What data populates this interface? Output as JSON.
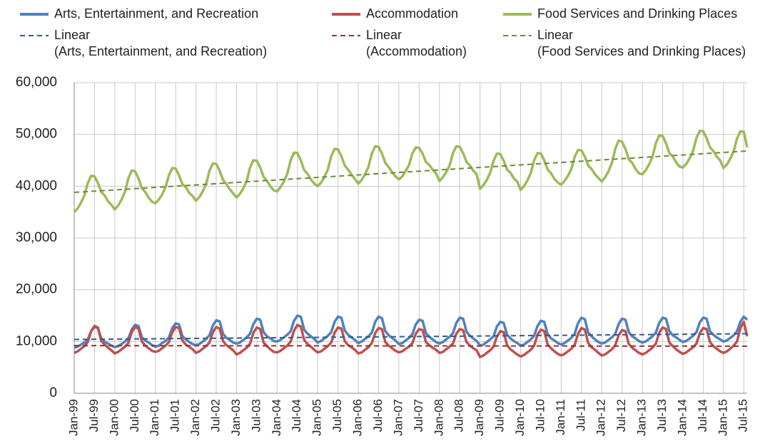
{
  "chart_data": {
    "type": "line",
    "categories": [
      "Jan-99",
      null,
      null,
      null,
      null,
      null,
      "Jul-99",
      null,
      null,
      null,
      null,
      null,
      "Jan-00",
      null,
      null,
      null,
      null,
      null,
      "Jul-00",
      null,
      null,
      null,
      null,
      null,
      "Jan-01",
      null,
      null,
      null,
      null,
      null,
      "Jul-01",
      null,
      null,
      null,
      null,
      null,
      "Jan-02",
      null,
      null,
      null,
      null,
      null,
      "Jul-02",
      null,
      null,
      null,
      null,
      null,
      "Jan-03",
      null,
      null,
      null,
      null,
      null,
      "Jul-03",
      null,
      null,
      null,
      null,
      null,
      "Jan-04",
      null,
      null,
      null,
      null,
      null,
      "Jul-04",
      null,
      null,
      null,
      null,
      null,
      "Jan-05",
      null,
      null,
      null,
      null,
      null,
      "Jul-05",
      null,
      null,
      null,
      null,
      null,
      "Jan-06",
      null,
      null,
      null,
      null,
      null,
      "Jul-06",
      null,
      null,
      null,
      null,
      null,
      "Jan-07",
      null,
      null,
      null,
      null,
      null,
      "Jul-07",
      null,
      null,
      null,
      null,
      null,
      "Jan-08",
      null,
      null,
      null,
      null,
      null,
      "Jul-08",
      null,
      null,
      null,
      null,
      null,
      "Jan-09",
      null,
      null,
      null,
      null,
      null,
      "Jul-09",
      null,
      null,
      null,
      null,
      null,
      "Jan-10",
      null,
      null,
      null,
      null,
      null,
      "Jul-10",
      null,
      null,
      null,
      null,
      null,
      "Jan-11",
      null,
      null,
      null,
      null,
      null,
      "Jul-11",
      null,
      null,
      null,
      null,
      null,
      "Jan-12",
      null,
      null,
      null,
      null,
      null,
      "Jul-12",
      null,
      null,
      null,
      null,
      null,
      "Jan-13",
      null,
      null,
      null,
      null,
      null,
      "Jul-13",
      null,
      null,
      null,
      null,
      null,
      "Jan-14",
      null,
      null,
      null,
      null,
      null,
      "Jul-14",
      null,
      null,
      null,
      null,
      null,
      "Jan-15",
      null,
      null,
      null,
      null,
      null,
      "Jul-15",
      null
    ],
    "series": [
      {
        "name": "Arts, Entertainment, and Recreation",
        "color": "#4f81bd",
        "values": [
          8800,
          9000,
          9400,
          9800,
          10400,
          12000,
          12800,
          12600,
          10600,
          10000,
          9600,
          9200,
          8900,
          9100,
          9500,
          10000,
          10600,
          12300,
          13200,
          13000,
          10800,
          10200,
          9800,
          9300,
          9000,
          9200,
          9700,
          10100,
          10800,
          12600,
          13500,
          13300,
          11000,
          10400,
          9900,
          9500,
          9300,
          9500,
          10000,
          10500,
          11200,
          13100,
          14100,
          13900,
          11500,
          10700,
          10300,
          9800,
          9600,
          9800,
          10300,
          10800,
          11500,
          13400,
          14400,
          14200,
          11800,
          11000,
          10600,
          10100,
          10000,
          10300,
          10800,
          11300,
          12000,
          14000,
          15000,
          14800,
          12300,
          11500,
          11000,
          10500,
          9800,
          10100,
          10600,
          11100,
          11800,
          13800,
          14800,
          14600,
          12100,
          11300,
          10800,
          10300,
          9700,
          10000,
          10500,
          11000,
          11700,
          13800,
          14800,
          14500,
          12000,
          11200,
          10700,
          10200,
          9500,
          9700,
          10200,
          10700,
          11400,
          13300,
          14200,
          14000,
          11600,
          10900,
          10400,
          9900,
          9600,
          9900,
          10400,
          10900,
          11600,
          13600,
          14600,
          14400,
          11900,
          11100,
          10600,
          10100,
          9200,
          9400,
          9900,
          10400,
          11000,
          12900,
          13800,
          13600,
          11300,
          10600,
          10100,
          9700,
          9200,
          9400,
          9900,
          10400,
          11100,
          13000,
          14000,
          13800,
          11400,
          10600,
          10200,
          9700,
          9400,
          9700,
          10200,
          10700,
          11500,
          13600,
          14600,
          14300,
          11700,
          11000,
          10400,
          9900,
          9600,
          9800,
          10300,
          10800,
          11500,
          13400,
          14400,
          14200,
          11800,
          11000,
          10600,
          10100,
          9800,
          10000,
          10500,
          11000,
          11700,
          13600,
          14600,
          14400,
          12000,
          11200,
          10800,
          10300,
          9900,
          10100,
          10600,
          11100,
          11800,
          13700,
          14600,
          14400,
          12000,
          11300,
          10800,
          10400,
          10000,
          10200,
          10700,
          11200,
          12000,
          13800,
          14800,
          14200
        ]
      },
      {
        "name": "Accommodation",
        "color": "#c0504d",
        "values": [
          7800,
          8100,
          8600,
          9100,
          9900,
          12000,
          13000,
          12700,
          10100,
          9400,
          8800,
          8300,
          7700,
          8000,
          8500,
          9000,
          9700,
          11800,
          12800,
          12500,
          10000,
          9200,
          8700,
          8200,
          8000,
          8200,
          8700,
          9200,
          9900,
          11800,
          12800,
          12600,
          10200,
          9400,
          9000,
          8500,
          7800,
          8100,
          8600,
          9100,
          9800,
          11800,
          12800,
          12500,
          10100,
          9300,
          8800,
          8300,
          7500,
          7800,
          8300,
          8800,
          9600,
          11700,
          12700,
          12400,
          9800,
          9100,
          8500,
          8000,
          7900,
          8200,
          8700,
          9200,
          10000,
          12100,
          13200,
          12900,
          10300,
          9500,
          9000,
          8400,
          7900,
          8100,
          8600,
          9100,
          9800,
          11700,
          12700,
          12500,
          10100,
          9300,
          8900,
          8400,
          7700,
          7900,
          8400,
          8900,
          9700,
          11600,
          12600,
          12400,
          9900,
          9200,
          8700,
          8200,
          7900,
          8100,
          8600,
          9000,
          9700,
          11500,
          12400,
          12200,
          9900,
          9300,
          8800,
          8400,
          7800,
          8000,
          8500,
          9000,
          9600,
          11500,
          12400,
          12200,
          9900,
          9200,
          8700,
          8300,
          7000,
          7300,
          7800,
          8300,
          9000,
          11000,
          12000,
          11800,
          9300,
          8500,
          8000,
          7500,
          7100,
          7400,
          7900,
          8400,
          9200,
          11300,
          12300,
          12000,
          9400,
          8700,
          8100,
          7600,
          7300,
          7600,
          8100,
          8600,
          9400,
          11500,
          12600,
          12300,
          9700,
          8900,
          8400,
          7800,
          7300,
          7500,
          8000,
          8500,
          9300,
          11200,
          12200,
          12000,
          9500,
          8800,
          8300,
          7800,
          7500,
          7800,
          8300,
          8800,
          9600,
          11700,
          12700,
          12400,
          9800,
          9100,
          8500,
          8000,
          7600,
          7900,
          8400,
          8900,
          9600,
          11600,
          12600,
          12400,
          9900,
          9100,
          8600,
          8100,
          7800,
          8100,
          8600,
          9200,
          10000,
          12600,
          13800,
          11000
        ]
      },
      {
        "name": "Food Services and Drinking Places",
        "color": "#9bbb59",
        "values": [
          35000,
          35700,
          36800,
          38200,
          40600,
          42000,
          41900,
          40600,
          38900,
          38200,
          37100,
          36400,
          35500,
          36300,
          37400,
          38900,
          41500,
          43000,
          42900,
          41500,
          39600,
          38900,
          37800,
          37000,
          36700,
          37400,
          38400,
          39800,
          42100,
          43500,
          43400,
          42100,
          40400,
          39800,
          38700,
          38100,
          37200,
          37900,
          39000,
          40400,
          43000,
          44400,
          44300,
          43000,
          41200,
          40400,
          39400,
          38600,
          37800,
          38500,
          39600,
          41000,
          43600,
          45000,
          44900,
          43600,
          41800,
          41000,
          40000,
          39200,
          39000,
          39800,
          40900,
          42400,
          45000,
          46500,
          46400,
          45000,
          43100,
          42400,
          41300,
          40500,
          40000,
          40700,
          41800,
          43200,
          45800,
          47200,
          47100,
          45800,
          44000,
          43200,
          42200,
          41400,
          40500,
          41200,
          42300,
          43700,
          46300,
          47700,
          47600,
          46300,
          44500,
          43700,
          42700,
          41900,
          41300,
          41900,
          42900,
          44100,
          46300,
          47500,
          47400,
          46300,
          44700,
          44100,
          43200,
          42500,
          41000,
          41700,
          42700,
          44000,
          46400,
          47700,
          47600,
          46400,
          44700,
          44000,
          43000,
          42300,
          39500,
          40200,
          41200,
          42600,
          44900,
          46300,
          46200,
          44900,
          43200,
          42600,
          41500,
          40900,
          39300,
          40000,
          41100,
          42500,
          45000,
          46400,
          46300,
          45000,
          43200,
          42500,
          41400,
          40700,
          40300,
          41000,
          42000,
          43300,
          45700,
          47000,
          46900,
          45700,
          44000,
          43300,
          42300,
          41600,
          40900,
          41700,
          42900,
          44500,
          47200,
          48800,
          48600,
          47200,
          45200,
          44500,
          43300,
          42500,
          42300,
          43100,
          44200,
          45700,
          48300,
          49800,
          49700,
          48300,
          46400,
          45700,
          44600,
          43800,
          43600,
          44300,
          45400,
          46800,
          49300,
          50700,
          50600,
          49300,
          47500,
          46800,
          45700,
          45000,
          43500,
          44200,
          45300,
          46700,
          49200,
          50600,
          50500,
          47500
        ]
      }
    ],
    "trendlines": [
      {
        "label_lines": [
          "Linear",
          "(Arts, Entertainment, and Recreation)"
        ],
        "color": "#2f5d8f",
        "start": 10400,
        "end": 11500
      },
      {
        "label_lines": [
          "Linear",
          "(Accommodation)"
        ],
        "color": "#8c3533",
        "start": 9200,
        "end": 9100
      },
      {
        "label_lines": [
          "Linear",
          "(Food Services and Drinking Places)"
        ],
        "color": "#6e8a35",
        "start": 38800,
        "end": 46800
      }
    ],
    "ylim": [
      0,
      60000
    ],
    "yticks": [
      0,
      {
        "value": 10000,
        "label": "10,000"
      },
      {
        "value": 20000,
        "label": "20,000"
      },
      {
        "value": 30000,
        "label": "30,000"
      },
      {
        "value": 40000,
        "label": "40,000"
      },
      {
        "value": 50000,
        "label": "50,000"
      },
      {
        "value": 60000,
        "label": "60,000"
      }
    ],
    "grid": true
  }
}
